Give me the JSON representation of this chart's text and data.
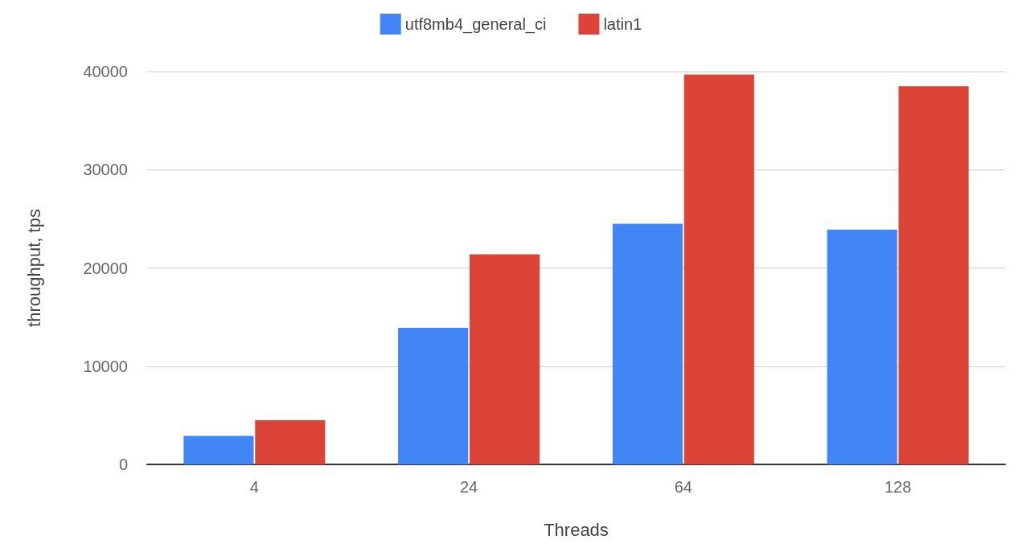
{
  "chart_data": {
    "type": "bar",
    "xlabel": "Threads",
    "ylabel": "throughput, tps",
    "categories": [
      "4",
      "24",
      "64",
      "128"
    ],
    "series": [
      {
        "name": "utf8mb4_general_ci",
        "color": "#4285f4",
        "values": [
          2900,
          13900,
          24500,
          23900
        ]
      },
      {
        "name": "latin1",
        "color": "#db4437",
        "values": [
          4500,
          21400,
          39700,
          38500
        ]
      }
    ],
    "ylim": [
      0,
      40000
    ],
    "yticks": [
      0,
      10000,
      20000,
      30000,
      40000
    ],
    "grid": "y",
    "legend": "top"
  }
}
